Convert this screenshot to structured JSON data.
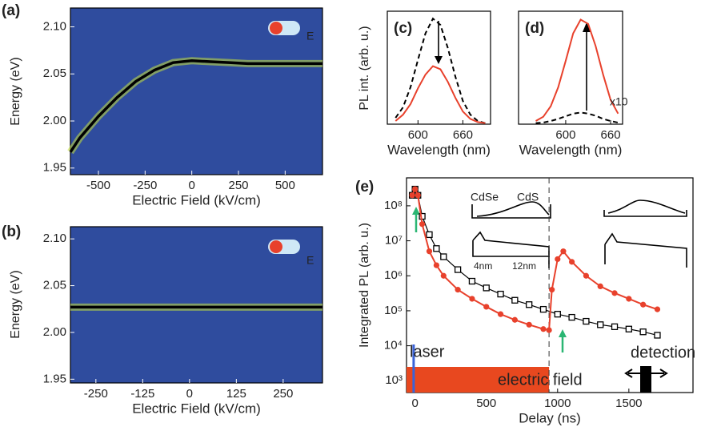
{
  "chart_data": [
    {
      "type": "line",
      "panel": "(a)",
      "xlabel": "Electric Field (kV/cm)",
      "ylabel": "Energy (eV)",
      "xlim": [
        -650,
        700
      ],
      "ylim": [
        1.943,
        2.12
      ],
      "xticks": [
        -500,
        -250,
        0,
        250,
        500
      ],
      "yticks": [
        1.95,
        {
          "value": 2,
          "label": "2.00"
        },
        2.05,
        {
          "value": 2.1,
          "label": "2.10"
        }
      ],
      "heatmap": true,
      "annotations": [
        "E"
      ],
      "series": [
        {
          "color": "#000000",
          "x": [
            -650,
            -600,
            -500,
            -400,
            -300,
            -200,
            -100,
            0,
            100,
            200,
            300,
            400,
            500,
            600,
            700
          ],
          "values": [
            1.967,
            1.982,
            2.005,
            2.025,
            2.042,
            2.054,
            2.062,
            2.064,
            2.063,
            2.062,
            2.061,
            2.061,
            2.061,
            2.061,
            2.061
          ]
        }
      ]
    },
    {
      "type": "line",
      "panel": "(b)",
      "xlabel": "Electric Field (kV/cm)",
      "ylabel": "Energy (eV)",
      "xlim": [
        -318,
        355
      ],
      "ylim": [
        1.946,
        2.113
      ],
      "xticks": [
        -250,
        -125,
        0,
        125,
        250
      ],
      "yticks": [
        1.95,
        {
          "value": 2,
          "label": "2.00"
        },
        2.05,
        {
          "value": 2.1,
          "label": "2.10"
        }
      ],
      "heatmap": true,
      "annotations": [
        "E"
      ],
      "series": [
        {
          "color": "#000000",
          "x": [
            -318,
            355
          ],
          "values": [
            2.027,
            2.027
          ]
        }
      ]
    },
    {
      "type": "line",
      "panel": "(c)",
      "xlabel": "Wavelength (nm)",
      "ylabel": "PL int. (arb. u.)",
      "xlim": [
        559,
        697
      ],
      "ylim": [
        0,
        1.07
      ],
      "xticks": [
        600,
        660
      ],
      "series": [
        {
          "color": "#000000",
          "dash": true,
          "x": [
            570,
            580,
            590,
            600,
            610,
            620,
            630,
            640,
            650,
            660,
            670,
            680,
            690
          ],
          "values": [
            0.06,
            0.16,
            0.35,
            0.61,
            0.86,
            1.0,
            0.94,
            0.72,
            0.45,
            0.22,
            0.09,
            0.03,
            0.01
          ]
        },
        {
          "color": "#e8412c",
          "x": [
            570,
            580,
            590,
            600,
            610,
            620,
            630,
            640,
            650,
            660,
            670,
            680,
            690
          ],
          "values": [
            0.03,
            0.09,
            0.19,
            0.34,
            0.47,
            0.55,
            0.52,
            0.4,
            0.25,
            0.12,
            0.05,
            0.02,
            0.01
          ]
        }
      ]
    },
    {
      "type": "line",
      "panel": "(d)",
      "xlabel": "Wavelength (nm)",
      "xlim": [
        537,
        676
      ],
      "ylim": [
        0,
        1.07
      ],
      "xticks": [
        600,
        660
      ],
      "annotations": [
        "x10"
      ],
      "series": [
        {
          "color": "#000000",
          "dash": true,
          "x": [
            560,
            570,
            580,
            590,
            600,
            610,
            620,
            630,
            640,
            650,
            660,
            670
          ],
          "values": [
            0.01,
            0.015,
            0.03,
            0.05,
            0.075,
            0.1,
            0.11,
            0.1,
            0.08,
            0.05,
            0.03,
            0.015
          ]
        },
        {
          "color": "#e8412c",
          "x": [
            560,
            570,
            580,
            590,
            600,
            610,
            620,
            630,
            640,
            650,
            660,
            670
          ],
          "values": [
            0.03,
            0.07,
            0.17,
            0.35,
            0.6,
            0.86,
            0.99,
            0.95,
            0.74,
            0.47,
            0.23,
            0.1
          ]
        }
      ]
    },
    {
      "type": "line",
      "panel": "(e)",
      "xlabel": "Delay (ns)",
      "ylabel": "Integrated PL (arb. u.)",
      "xlim": [
        -60,
        1950
      ],
      "ylim": [
        460,
        630000000
      ],
      "log_y": true,
      "xticks": [
        0,
        500,
        1000,
        1500
      ],
      "yticks": [
        {
          "value": 1000,
          "label": "10³"
        },
        {
          "value": 10000,
          "label": "10⁴"
        },
        {
          "value": 100000,
          "label": "10⁵"
        },
        {
          "value": 1000000,
          "label": "10⁶"
        },
        {
          "value": 10000000,
          "label": "10⁷"
        },
        {
          "value": 100000000,
          "label": "10⁸"
        }
      ],
      "field_end": 940,
      "laser_x": -10,
      "annotations": [
        "laser",
        "electric field",
        "detection",
        "CdSe",
        "CdS",
        "4nm",
        "12nm"
      ],
      "series": [
        {
          "color": "#000000",
          "marker": "square",
          "x": [
            -20,
            0,
            20,
            50,
            100,
            150,
            200,
            300,
            400,
            500,
            600,
            700,
            800,
            900,
            1000,
            1100,
            1200,
            1300,
            1400,
            1500,
            1600,
            1700
          ],
          "values": [
            200000000,
            300000000,
            200000000,
            50000000,
            15000000,
            6000000,
            3500000,
            1500000,
            700000,
            450000,
            300000,
            200000,
            150000,
            110000,
            80000,
            65000,
            50000,
            40000,
            35000,
            30000,
            25000,
            20000
          ]
        },
        {
          "color": "#e8412c",
          "marker": "circle",
          "x": [
            -20,
            0,
            20,
            50,
            100,
            150,
            200,
            300,
            400,
            500,
            600,
            700,
            800,
            900,
            940,
            960,
            1000,
            1040,
            1100,
            1200,
            1300,
            1400,
            1500,
            1600,
            1700
          ],
          "values": [
            200000000,
            300000000,
            200000000,
            30000000,
            5000000,
            2000000,
            1000000,
            400000,
            220000,
            130000,
            80000,
            55000,
            40000,
            30000,
            28000,
            400000,
            3000000,
            5000000,
            2500000,
            1000000,
            500000,
            320000,
            220000,
            150000,
            110000
          ]
        }
      ]
    }
  ]
}
